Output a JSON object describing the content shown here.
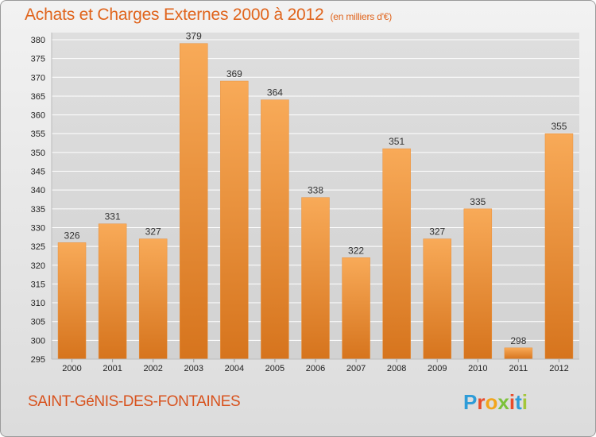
{
  "header": {
    "title": "Achats et Charges Externes 2000 à 2012",
    "subtitle": "(en milliers d'€)"
  },
  "footer": {
    "commune": "SAINT-GéNIS-DES-FONTAINES",
    "logo_letters": [
      "P",
      "r",
      "o",
      "x",
      "i",
      "t",
      "i"
    ],
    "logo_colors": [
      "#2e9cd8",
      "#e84b2a",
      "#f2a51c",
      "#7cc23a",
      "#e84b2a",
      "#2e9cd8",
      "#a4c639"
    ]
  },
  "colors": {
    "bar_light": "#f7a755",
    "bar_dark": "#d9761f",
    "grid": "#ffffff",
    "title": "#e0641c"
  },
  "chart_data": {
    "type": "bar",
    "title": "Achats et Charges Externes 2000 à 2012",
    "subtitle": "(en milliers d'€)",
    "categories": [
      "2000",
      "2001",
      "2002",
      "2003",
      "2004",
      "2005",
      "2006",
      "2007",
      "2008",
      "2009",
      "2010",
      "2011",
      "2012"
    ],
    "values": [
      326,
      331,
      327,
      379,
      369,
      364,
      338,
      322,
      351,
      327,
      335,
      298,
      355
    ],
    "ylim": [
      295,
      380
    ],
    "yticks": [
      295,
      300,
      305,
      310,
      315,
      320,
      325,
      330,
      335,
      340,
      345,
      350,
      355,
      360,
      365,
      370,
      375,
      380
    ],
    "grid": true,
    "xlabel": "",
    "ylabel": ""
  }
}
